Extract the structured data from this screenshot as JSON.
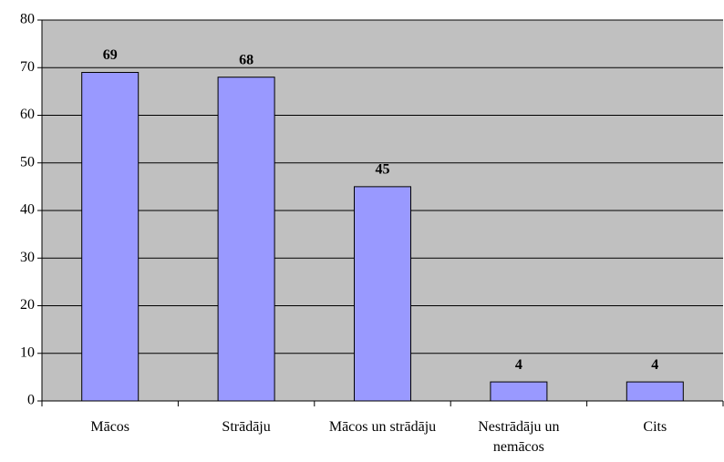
{
  "chart_data": {
    "type": "bar",
    "categories": [
      "Mācos",
      "Strādāju",
      "Mācos un strādāju",
      "Nestrādāju un nemācos",
      "Cits"
    ],
    "values": [
      69,
      68,
      45,
      4,
      4
    ],
    "color": "#9999ff",
    "ylim": [
      0,
      80
    ],
    "yticks": [
      0,
      10,
      20,
      30,
      40,
      50,
      60,
      70,
      80
    ],
    "grid": true
  }
}
